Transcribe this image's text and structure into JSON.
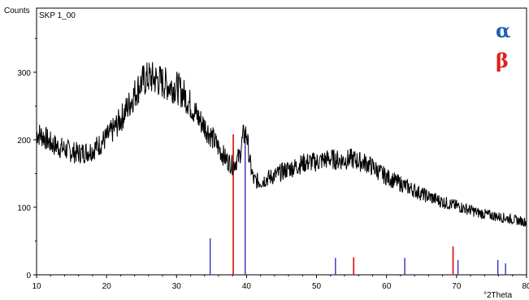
{
  "chart_data": {
    "type": "line",
    "title": "SKP 1_00",
    "ylabel": "Counts",
    "xlabel": "°2Theta",
    "xlim": [
      10,
      80
    ],
    "ylim": [
      0,
      395
    ],
    "x_ticks": [
      10,
      20,
      30,
      40,
      50,
      60,
      70,
      80
    ],
    "y_ticks": [
      0,
      100,
      200,
      300
    ],
    "grid": false,
    "legend_position": "top-right",
    "legend": [
      {
        "symbol": "α",
        "color": "#1f5fb4"
      },
      {
        "symbol": "β",
        "color": "#e02020"
      }
    ],
    "series": [
      {
        "color": "#000000",
        "x": [
          10,
          11,
          12,
          13,
          14,
          15,
          16,
          17,
          18,
          19,
          20,
          21,
          22,
          23,
          24,
          25,
          26,
          27,
          28,
          29,
          30,
          31,
          32,
          33,
          34,
          35,
          36,
          37,
          38,
          39,
          39.5,
          40,
          40.5,
          41,
          42,
          43,
          44,
          45,
          46,
          47,
          48,
          49,
          50,
          51,
          52,
          53,
          54,
          55,
          56,
          57,
          58,
          59,
          60,
          61,
          62,
          63,
          64,
          65,
          66,
          67,
          68,
          69,
          70,
          71,
          72,
          73,
          74,
          75,
          76,
          77,
          78,
          79,
          80
        ],
        "y": [
          210,
          205,
          195,
          190,
          186,
          182,
          180,
          182,
          185,
          193,
          203,
          215,
          230,
          248,
          268,
          285,
          292,
          290,
          285,
          280,
          278,
          268,
          252,
          234,
          220,
          205,
          188,
          172,
          162,
          175,
          205,
          210,
          165,
          140,
          138,
          143,
          147,
          152,
          157,
          160,
          165,
          167,
          167,
          170,
          172,
          170,
          170,
          172,
          168,
          166,
          160,
          152,
          145,
          140,
          135,
          130,
          125,
          120,
          116,
          112,
          108,
          105,
          102,
          99,
          96,
          92,
          90,
          88,
          86,
          84,
          82,
          80,
          78
        ]
      }
    ],
    "reference_lines": [
      {
        "phase": "alpha",
        "color": "#3030c0",
        "x": [
          34.8,
          39.8,
          52.7,
          62.6,
          70.2,
          75.9,
          77.0
        ],
        "y": [
          54,
          216,
          25,
          25,
          22,
          22,
          17
        ]
      },
      {
        "phase": "beta",
        "color": "#e02020",
        "x": [
          38.1,
          55.3,
          69.5
        ],
        "y": [
          208,
          26,
          42
        ]
      }
    ]
  }
}
